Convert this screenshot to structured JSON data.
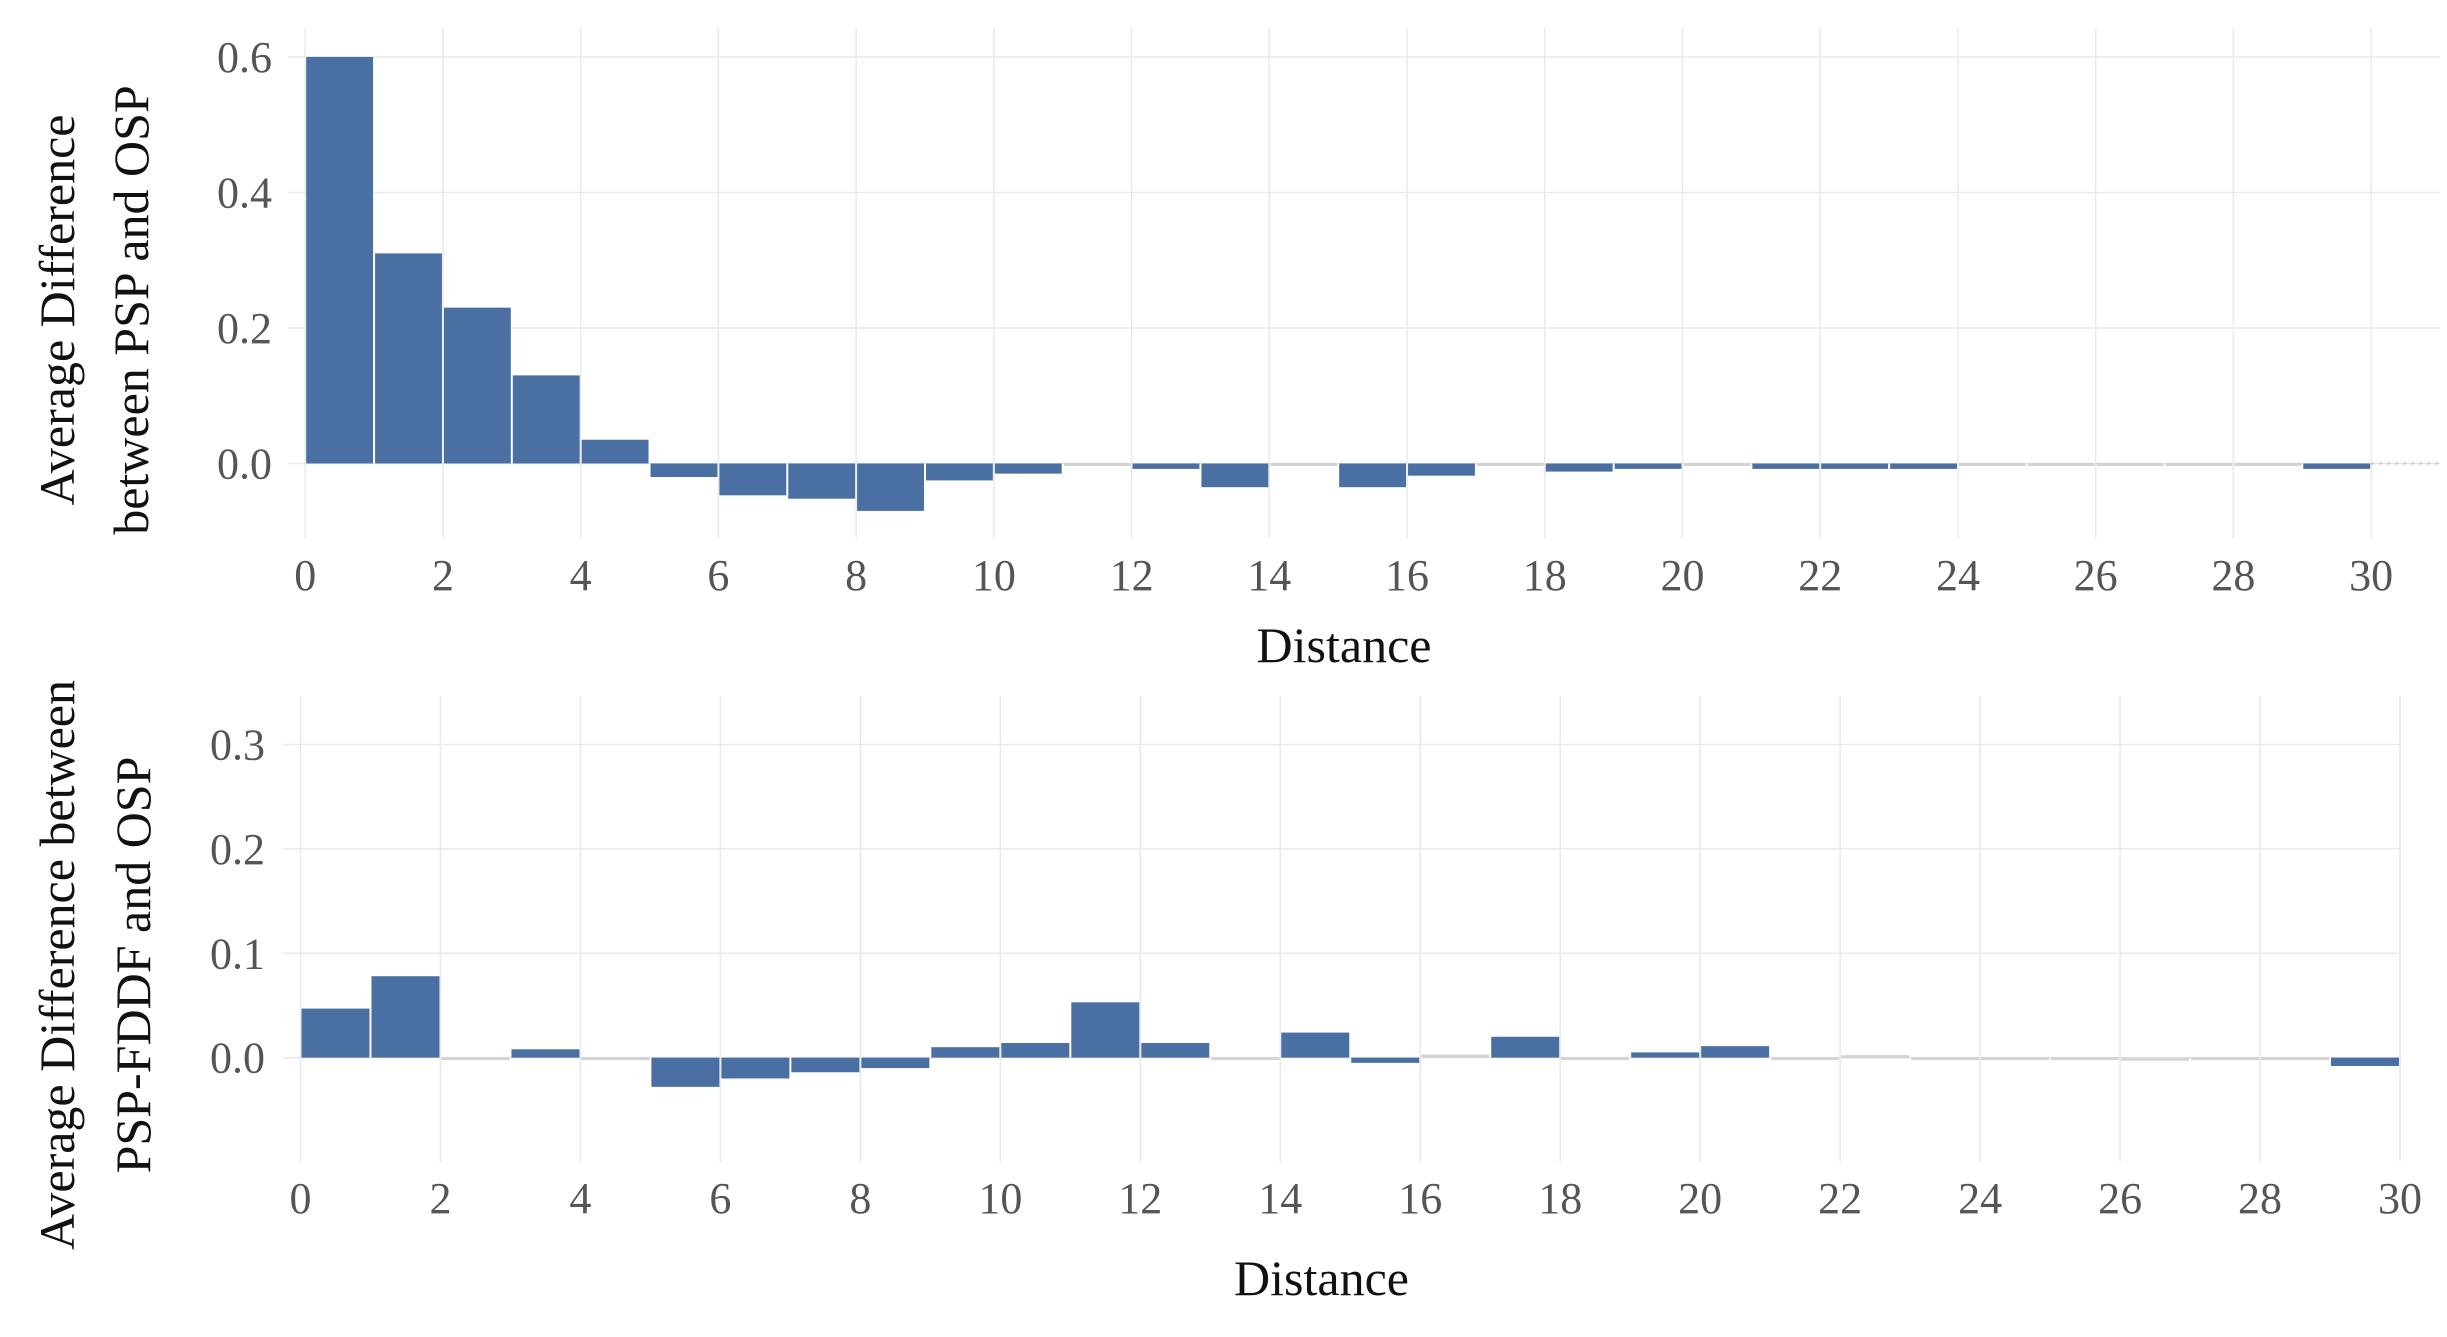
{
  "colors": {
    "bar": "#4a6fa3",
    "zero_bar": "#d3d3d3",
    "grid": "#e9e9e9"
  },
  "chart_data": [
    {
      "type": "bar",
      "xlabel": "Distance",
      "ylabel": "Average Difference between PSP and OSP",
      "ylabel_lines": [
        "Average Difference",
        "between PSP and OSP"
      ],
      "x": [
        0,
        1,
        2,
        3,
        4,
        5,
        6,
        7,
        8,
        9,
        10,
        11,
        12,
        13,
        14,
        15,
        16,
        17,
        18,
        19,
        20,
        21,
        22,
        23,
        24,
        25,
        26,
        27,
        28,
        29
      ],
      "values": [
        0.6,
        0.31,
        0.23,
        0.13,
        0.035,
        -0.02,
        -0.047,
        -0.052,
        -0.07,
        -0.025,
        -0.015,
        -0.003,
        -0.008,
        -0.035,
        -0.003,
        -0.035,
        -0.018,
        -0.003,
        -0.012,
        -0.008,
        -0.003,
        -0.008,
        -0.008,
        -0.008,
        -0.003,
        -0.003,
        -0.003,
        -0.003,
        -0.003,
        -0.008
      ],
      "xlim": [
        -0.25,
        31
      ],
      "ylim": [
        -0.11,
        0.625
      ],
      "xticks": [
        0,
        2,
        4,
        6,
        8,
        10,
        12,
        14,
        16,
        18,
        20,
        22,
        24,
        26,
        28,
        30
      ],
      "xtick_labels": [
        "0",
        "2",
        "4",
        "6",
        "8",
        "10",
        "12",
        "14",
        "16",
        "18",
        "20",
        "22",
        "24",
        "26",
        "28",
        "30"
      ],
      "yticks": [
        0,
        0.2,
        0.4,
        0.6
      ],
      "ytick_labels": [
        "0.0",
        "0.2",
        "0.4",
        "0.6"
      ],
      "grid": true
    },
    {
      "type": "bar",
      "xlabel": "Distance",
      "ylabel": "Average Difference between PSP-FDDF and OSP",
      "ylabel_lines": [
        "Average Difference between",
        "PSP-FDDF and OSP"
      ],
      "x": [
        0,
        1,
        2,
        3,
        4,
        5,
        6,
        7,
        8,
        9,
        10,
        11,
        12,
        13,
        14,
        15,
        16,
        17,
        18,
        19,
        20,
        21,
        22,
        23,
        24,
        25,
        26,
        27,
        28,
        29
      ],
      "values": [
        0.047,
        0.078,
        -0.002,
        0.008,
        -0.002,
        -0.028,
        -0.02,
        -0.014,
        -0.01,
        0.01,
        0.014,
        0.053,
        0.014,
        -0.002,
        0.024,
        -0.005,
        0.003,
        0.02,
        -0.002,
        0.005,
        0.011,
        -0.002,
        0.002,
        -0.002,
        -0.002,
        -0.002,
        -0.003,
        -0.002,
        -0.002,
        -0.008
      ],
      "xlim": [
        -0.25,
        30
      ],
      "ylim": [
        -0.1,
        0.335
      ],
      "xticks": [
        0,
        2,
        4,
        6,
        8,
        10,
        12,
        14,
        16,
        18,
        20,
        22,
        24,
        26,
        28,
        30
      ],
      "xtick_labels": [
        "0",
        "2",
        "4",
        "6",
        "8",
        "10",
        "12",
        "14",
        "16",
        "18",
        "20",
        "22",
        "24",
        "26",
        "28",
        "30"
      ],
      "yticks": [
        0,
        0.1,
        0.2,
        0.3
      ],
      "ytick_labels": [
        "0.0",
        "0.1",
        "0.2",
        "0.3"
      ],
      "grid": true
    }
  ]
}
